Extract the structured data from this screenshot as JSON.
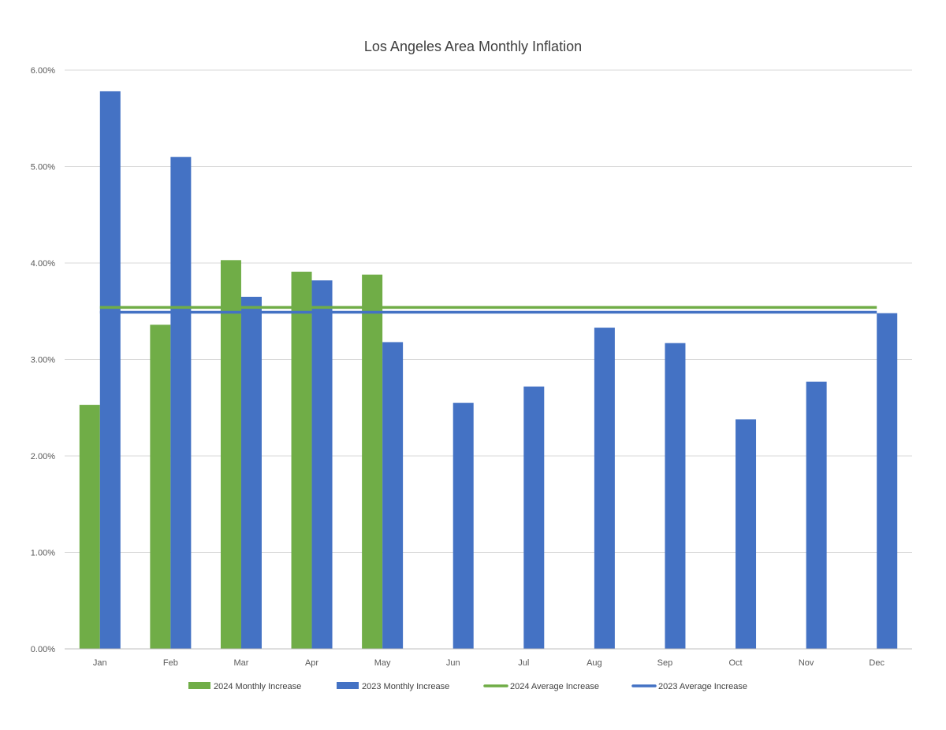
{
  "chart_data": {
    "type": "bar",
    "title": "Los Angeles Area Monthly Inflation",
    "xlabel": "",
    "ylabel": "",
    "categories": [
      "Jan",
      "Feb",
      "Mar",
      "Apr",
      "May",
      "Jun",
      "Jul",
      "Aug",
      "Sep",
      "Oct",
      "Nov",
      "Dec"
    ],
    "ylim": [
      0,
      6
    ],
    "yticks": [
      {
        "value": 0,
        "label": "0.00%"
      },
      {
        "value": 1,
        "label": "1.00%"
      },
      {
        "value": 2,
        "label": "2.00%"
      },
      {
        "value": 3,
        "label": "3.00%"
      },
      {
        "value": 4,
        "label": "4.00%"
      },
      {
        "value": 5,
        "label": "5.00%"
      },
      {
        "value": 6,
        "label": "6.00%"
      }
    ],
    "grid": true,
    "legend_position": "bottom",
    "series": [
      {
        "name": "2024 Monthly Increase",
        "kind": "bar",
        "color": "#70ad47",
        "values": [
          2.53,
          3.36,
          4.03,
          3.91,
          3.88,
          null,
          null,
          null,
          null,
          null,
          null,
          null
        ]
      },
      {
        "name": "2023 Monthly Increase",
        "kind": "bar",
        "color": "#4472c4",
        "values": [
          5.78,
          5.1,
          3.65,
          3.82,
          3.18,
          2.55,
          2.72,
          3.33,
          3.17,
          2.38,
          2.77,
          3.48
        ]
      },
      {
        "name": "2024 Average Increase",
        "kind": "line",
        "color": "#70ad47",
        "values": [
          3.54,
          3.54,
          3.54,
          3.54,
          3.54,
          3.54,
          3.54,
          3.54,
          3.54,
          3.54,
          3.54,
          3.54
        ]
      },
      {
        "name": "2023 Average Increase",
        "kind": "line",
        "color": "#4472c4",
        "values": [
          3.49,
          3.49,
          3.49,
          3.49,
          3.49,
          3.49,
          3.49,
          3.49,
          3.49,
          3.49,
          3.49,
          3.49
        ]
      }
    ]
  }
}
